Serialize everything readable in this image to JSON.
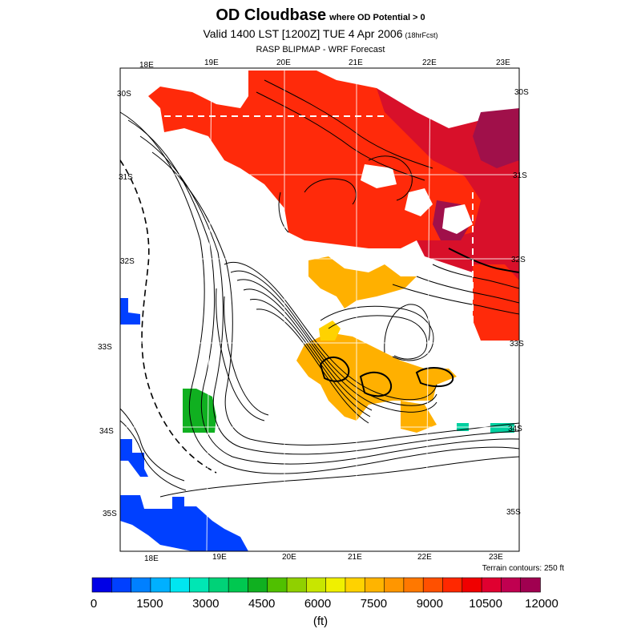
{
  "title": {
    "main": "OD Cloudbase",
    "qualifier": "where OD Potential > 0",
    "valid": "Valid 1400 LST [1200Z] TUE 4 Apr 2006",
    "forecast": "(18hrFcst)",
    "source": "RASP BLIPMAP - WRF Forecast"
  },
  "map": {
    "lon_labels_top": [
      "18E",
      "19E",
      "20E",
      "21E",
      "22E",
      "23E"
    ],
    "lon_labels_bottom": [
      "18E",
      "19E",
      "20E",
      "21E",
      "22E",
      "23E"
    ],
    "lat_labels_left": [
      "30S",
      "31S",
      "32S",
      "33S",
      "34S",
      "35S"
    ],
    "lat_labels_right": [
      "30S",
      "31S",
      "32S",
      "33S",
      "34S",
      "35S"
    ],
    "terrain_note": "Terrain contours: 250 ft"
  },
  "colorbar": {
    "colors": [
      "#0000e6",
      "#0040ff",
      "#0080ff",
      "#00b0ff",
      "#00e6f0",
      "#00e6b4",
      "#00d278",
      "#00c850",
      "#10b020",
      "#50c000",
      "#90d000",
      "#c8e600",
      "#f0f000",
      "#ffd200",
      "#ffb400",
      "#ff9600",
      "#ff7800",
      "#ff5000",
      "#ff2800",
      "#f00000",
      "#e00030",
      "#c00050",
      "#a00050"
    ],
    "labels": [
      "0",
      "1500",
      "3000",
      "4500",
      "6000",
      "7500",
      "9000",
      "10500",
      "12000"
    ],
    "unit": "(ft)"
  },
  "field_colors": {
    "red": "#ff2a0a",
    "deep_red": "#d8102a",
    "magenta": "#a0104a",
    "orange": "#ffb000",
    "yellow": "#ffd200",
    "green": "#10b020",
    "cyan_green": "#00d0a0",
    "blue": "#0040ff"
  }
}
